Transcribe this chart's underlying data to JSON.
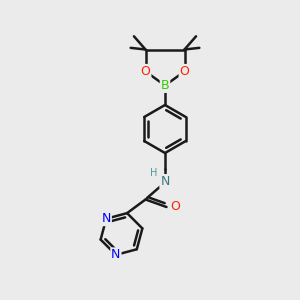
{
  "background_color": "#ebebeb",
  "line_color": "#1a1a1a",
  "bond_width": 1.8,
  "atom_colors": {
    "B": "#33cc00",
    "O": "#ff2200",
    "N": "#0000ff",
    "C": "#1a1a1a",
    "H": "#4a9a9a"
  },
  "font_size": 8,
  "figsize": [
    3.0,
    3.0
  ],
  "dpi": 100
}
